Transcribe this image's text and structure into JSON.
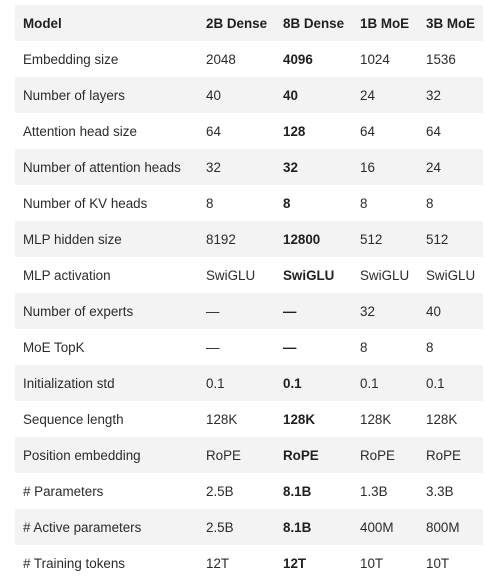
{
  "table": {
    "headers": [
      "Model",
      "2B Dense",
      "8B Dense",
      "1B MoE",
      "3B MoE"
    ],
    "rows": [
      [
        "Embedding size",
        "2048",
        "4096",
        "1024",
        "1536"
      ],
      [
        "Number of layers",
        "40",
        "40",
        "24",
        "32"
      ],
      [
        "Attention head size",
        "64",
        "128",
        "64",
        "64"
      ],
      [
        "Number of attention heads",
        "32",
        "32",
        "16",
        "24"
      ],
      [
        "Number of KV heads",
        "8",
        "8",
        "8",
        "8"
      ],
      [
        "MLP hidden size",
        "8192",
        "12800",
        "512",
        "512"
      ],
      [
        "MLP activation",
        "SwiGLU",
        "SwiGLU",
        "SwiGLU",
        "SwiGLU"
      ],
      [
        "Number of experts",
        "—",
        "—",
        "32",
        "40"
      ],
      [
        "MoE TopK",
        "—",
        "—",
        "8",
        "8"
      ],
      [
        "Initialization std",
        "0.1",
        "0.1",
        "0.1",
        "0.1"
      ],
      [
        "Sequence length",
        "128K",
        "128K",
        "128K",
        "128K"
      ],
      [
        "Position embedding",
        "RoPE",
        "RoPE",
        "RoPE",
        "RoPE"
      ],
      [
        "# Parameters",
        "2.5B",
        "8.1B",
        "1.3B",
        "3.3B"
      ],
      [
        "# Active parameters",
        "2.5B",
        "8.1B",
        "400M",
        "800M"
      ],
      [
        "# Training tokens",
        "12T",
        "12T",
        "10T",
        "10T"
      ]
    ]
  }
}
